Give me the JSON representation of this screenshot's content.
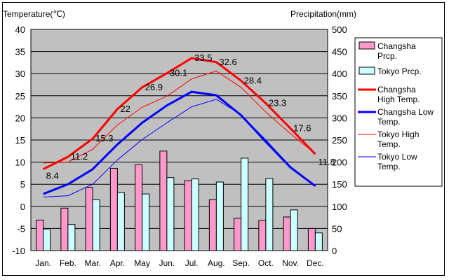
{
  "chart_data": {
    "type": "bar+line",
    "left_axis_title": "Temperature(℃)",
    "right_axis_title": "Precipitation(mm)",
    "categories": [
      "Jan.",
      "Feb.",
      "Mar.",
      "Apr.",
      "May",
      "Jun.",
      "Jul.",
      "Aug.",
      "Sep.",
      "Oct.",
      "Nov.",
      "Dec."
    ],
    "y_left": {
      "range": [
        -10,
        40
      ],
      "ticks": [
        -10,
        -5,
        0,
        5,
        10,
        15,
        20,
        25,
        30,
        35,
        40
      ]
    },
    "y_right": {
      "range": [
        0,
        500
      ],
      "ticks": [
        0,
        50,
        100,
        150,
        200,
        250,
        300,
        350,
        400,
        450,
        500
      ]
    },
    "grid": true,
    "plot_background": "#c0c0c0",
    "legend_position": "right",
    "bar_series": [
      {
        "name": "Changsha Prcp.",
        "legend_label": [
          "Changsha",
          "Prcp."
        ],
        "color": "#ff99cc",
        "values": [
          69,
          96,
          143,
          186,
          194,
          225,
          158,
          115,
          73,
          68,
          76,
          50
        ]
      },
      {
        "name": "Tokyo Prcp.",
        "legend_label": [
          "Tokyo Prcp."
        ],
        "color": "#ccffff",
        "values": [
          49,
          59,
          115,
          131,
          128,
          165,
          162,
          155,
          209,
          163,
          92,
          40
        ]
      }
    ],
    "line_series": [
      {
        "name": "Changsha High Temp.",
        "legend_label": [
          "Changsha",
          "High Temp."
        ],
        "color": "#ff0000",
        "width": 3,
        "values": [
          8.4,
          11.2,
          15.3,
          22,
          26.9,
          30.1,
          33.5,
          32.6,
          28.4,
          23.3,
          17.6,
          11.8
        ]
      },
      {
        "name": "Changsha Low Temp.",
        "legend_label": [
          "Changsha Low",
          "Temp."
        ],
        "color": "#0000ff",
        "width": 3,
        "values": [
          2.8,
          5.0,
          8.4,
          14.0,
          18.9,
          22.8,
          25.9,
          25.1,
          20.6,
          14.6,
          8.8,
          4.6
        ]
      },
      {
        "name": "Tokyo High Temp.",
        "legend_label": [
          "Tokyo High",
          "Temp."
        ],
        "color": "#ff0000",
        "width": 1,
        "values": [
          9.8,
          10.0,
          12.9,
          18.4,
          22.4,
          24.9,
          28.8,
          30.6,
          26.9,
          21.3,
          16.4,
          11.9
        ]
      },
      {
        "name": "Tokyo Low Temp.",
        "legend_label": [
          "Tokyo Low",
          "Temp."
        ],
        "color": "#0000ff",
        "width": 1,
        "values": [
          2.1,
          2.4,
          5.0,
          10.5,
          15.1,
          18.9,
          22.5,
          24.2,
          20.7,
          15.0,
          9.0,
          4.5
        ]
      }
    ],
    "data_labels": [
      "8.4",
      "11.2",
      "15.3",
      "22",
      "26.9",
      "30.1",
      "33.5",
      "32.6",
      "28.4",
      "23.3",
      "17.6",
      "11.8"
    ]
  }
}
